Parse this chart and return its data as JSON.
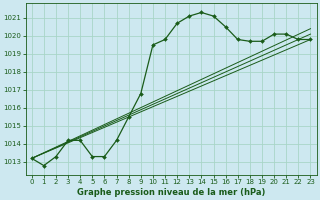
{
  "title": "Graphe pression niveau de la mer (hPa)",
  "bg_color": "#cde8f0",
  "grid_color": "#a8d5c8",
  "line_color": "#1a5c1a",
  "xlim": [
    -0.5,
    23.5
  ],
  "ylim": [
    1012.3,
    1021.8
  ],
  "yticks": [
    1013,
    1014,
    1015,
    1016,
    1017,
    1018,
    1019,
    1020,
    1021
  ],
  "xticks": [
    0,
    1,
    2,
    3,
    4,
    5,
    6,
    7,
    8,
    9,
    10,
    11,
    12,
    13,
    14,
    15,
    16,
    17,
    18,
    19,
    20,
    21,
    22,
    23
  ],
  "main_line": {
    "x": [
      0,
      1,
      2,
      3,
      4,
      5,
      6,
      7,
      8,
      9,
      10,
      11,
      12,
      13,
      14,
      15,
      16,
      17,
      18,
      19,
      20,
      21,
      22,
      23
    ],
    "y": [
      1013.2,
      1012.8,
      1013.3,
      1014.2,
      1014.2,
      1013.3,
      1013.3,
      1014.2,
      1015.5,
      1016.8,
      1019.5,
      1019.8,
      1020.7,
      1021.1,
      1021.3,
      1021.1,
      1020.5,
      1019.8,
      1019.7,
      1019.7,
      1020.1,
      1020.1,
      1019.8,
      1019.8
    ]
  },
  "trend_lines": [
    {
      "x": [
        0,
        23
      ],
      "y": [
        1013.2,
        1019.8
      ]
    },
    {
      "x": [
        0,
        23
      ],
      "y": [
        1013.2,
        1020.1
      ]
    },
    {
      "x": [
        0,
        23
      ],
      "y": [
        1013.2,
        1020.4
      ]
    }
  ]
}
